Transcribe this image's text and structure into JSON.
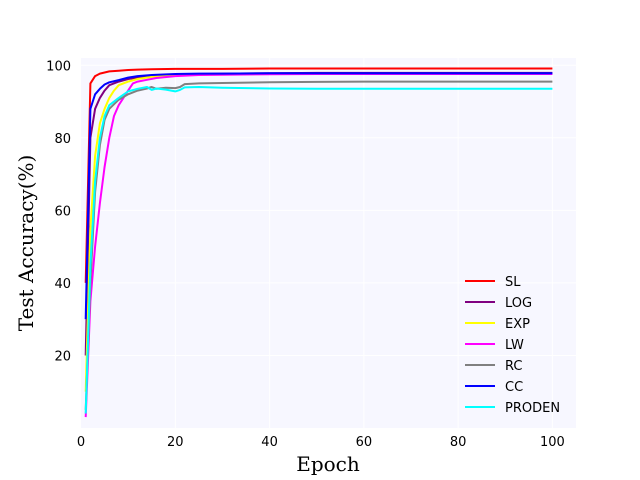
{
  "chart_data": {
    "type": "line",
    "title": "",
    "xlabel": "Epoch",
    "ylabel": "Test Accuracy(%)",
    "xlim": [
      0,
      105
    ],
    "ylim": [
      0,
      102
    ],
    "xticks": [
      0,
      20,
      40,
      60,
      80,
      100
    ],
    "yticks": [
      20,
      40,
      60,
      80,
      100
    ],
    "grid": true,
    "legend_position": "lower-right",
    "background_color": "#f7f7ff",
    "series": [
      {
        "name": "SL",
        "color": "#ff0000",
        "x": [
          1,
          2,
          3,
          4,
          5,
          6,
          8,
          10,
          12,
          15,
          20,
          25,
          30,
          40,
          50,
          60,
          70,
          80,
          90,
          100
        ],
        "y": [
          40,
          95,
          97,
          97.7,
          98,
          98.3,
          98.5,
          98.7,
          98.8,
          98.9,
          99.0,
          99.0,
          99.0,
          99.1,
          99.1,
          99.1,
          99.1,
          99.1,
          99.1,
          99.1
        ]
      },
      {
        "name": "LOG",
        "color": "#800080",
        "x": [
          1,
          2,
          3,
          4,
          5,
          6,
          8,
          10,
          12,
          15,
          20,
          25,
          30,
          40,
          50,
          60,
          70,
          80,
          90,
          100
        ],
        "y": [
          20,
          80,
          88,
          91,
          93,
          94.5,
          95.5,
          96.2,
          96.6,
          97.0,
          97.4,
          97.6,
          97.7,
          97.8,
          97.9,
          97.9,
          97.9,
          97.9,
          97.9,
          97.9
        ]
      },
      {
        "name": "EXP",
        "color": "#ffff00",
        "x": [
          1,
          2,
          3,
          4,
          5,
          6,
          7,
          8,
          10,
          12,
          15,
          20,
          25,
          30,
          40,
          50,
          60,
          70,
          80,
          90,
          100
        ],
        "y": [
          10,
          55,
          75,
          84,
          88,
          91,
          93,
          94.5,
          95.5,
          96.2,
          96.8,
          97.2,
          97.4,
          97.5,
          97.6,
          97.7,
          97.7,
          97.7,
          97.7,
          97.7,
          97.7
        ]
      },
      {
        "name": "LW",
        "color": "#ff00ff",
        "x": [
          1,
          2,
          3,
          4,
          5,
          6,
          7,
          8,
          9,
          10,
          11,
          12,
          14,
          16,
          20,
          25,
          30,
          40,
          50,
          60,
          70,
          80,
          90,
          100
        ],
        "y": [
          3,
          35,
          50,
          62,
          72,
          80,
          86,
          89,
          91,
          93,
          95,
          95.5,
          96,
          96.5,
          97,
          97.3,
          97.4,
          97.5,
          97.6,
          97.6,
          97.6,
          97.6,
          97.6,
          97.6
        ]
      },
      {
        "name": "RC",
        "color": "#808080",
        "x": [
          1,
          2,
          3,
          4,
          5,
          6,
          8,
          10,
          12,
          14,
          15,
          16,
          18,
          20,
          21,
          22,
          25,
          30,
          40,
          50,
          60,
          70,
          80,
          90,
          100
        ],
        "y": [
          5,
          40,
          65,
          78,
          85,
          88,
          90.5,
          92,
          93,
          93.6,
          94,
          93.5,
          93.8,
          93.7,
          94,
          94.8,
          95,
          95.1,
          95.3,
          95.4,
          95.5,
          95.5,
          95.5,
          95.5,
          95.5
        ]
      },
      {
        "name": "CC",
        "color": "#0000ff",
        "x": [
          1,
          2,
          3,
          4,
          5,
          6,
          8,
          10,
          12,
          15,
          20,
          25,
          30,
          40,
          50,
          60,
          70,
          80,
          90,
          100
        ],
        "y": [
          30,
          88,
          92,
          93.5,
          94.7,
          95.3,
          95.9,
          96.6,
          97.0,
          97.3,
          97.6,
          97.7,
          97.7,
          97.8,
          97.8,
          97.8,
          97.8,
          97.8,
          97.8,
          97.8
        ]
      },
      {
        "name": "PRODEN",
        "color": "#00ffff",
        "x": [
          1,
          2,
          3,
          4,
          5,
          6,
          8,
          10,
          12,
          14,
          15,
          16,
          18,
          20,
          21,
          22,
          25,
          30,
          40,
          50,
          60,
          70,
          80,
          90,
          100
        ],
        "y": [
          4,
          45,
          68,
          80,
          86,
          89,
          91,
          92.8,
          93.5,
          94,
          93.2,
          93.6,
          93.3,
          92.8,
          93.2,
          93.9,
          94,
          93.8,
          93.6,
          93.5,
          93.5,
          93.5,
          93.5,
          93.5,
          93.5
        ]
      }
    ]
  }
}
